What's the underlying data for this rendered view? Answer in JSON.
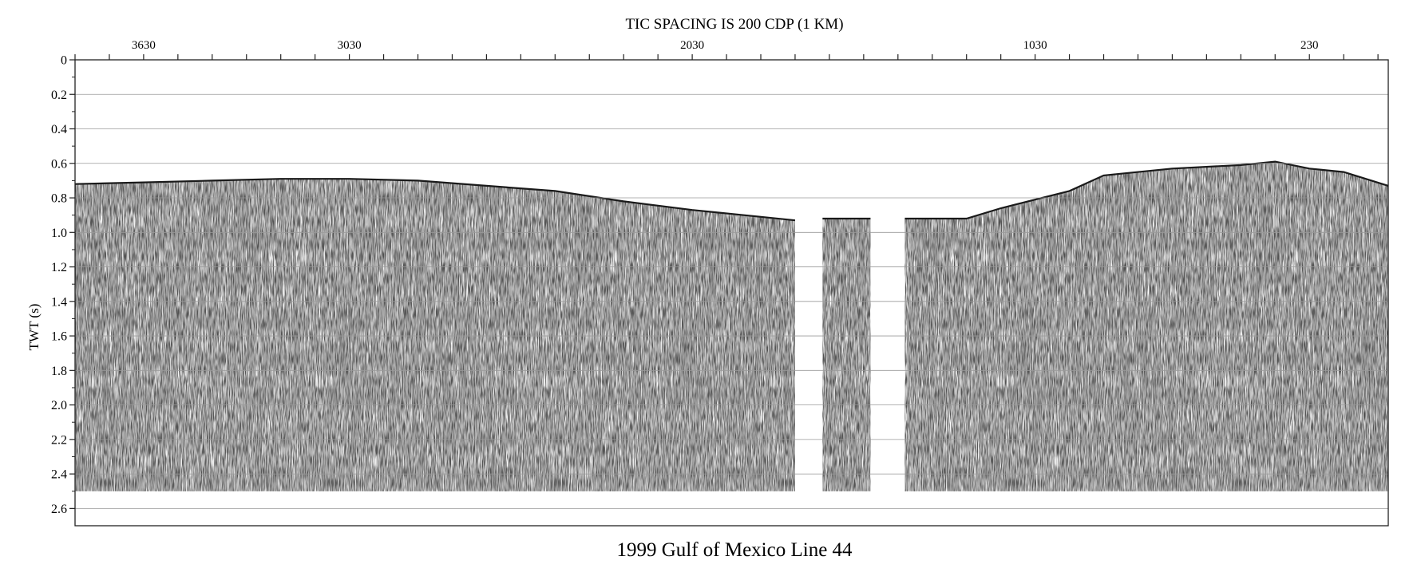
{
  "chart_data": {
    "type": "heatmap",
    "subtype": "seismic-reflection-section",
    "top_title": "TIC SPACING IS 200 CDP (1 KM)",
    "title": "1999 Gulf of Mexico Line 44",
    "ylabel": "TWT (s)",
    "xlabel": "",
    "y_axis": {
      "inverted": true,
      "ylim": [
        0,
        2.7
      ],
      "ticks": [
        0,
        0.2,
        0.4,
        0.6,
        0.8,
        1.0,
        1.2,
        1.4,
        1.6,
        1.8,
        2.0,
        2.2,
        2.4,
        2.6
      ],
      "tick_labels": [
        "0",
        "0.2",
        "0.4",
        "0.6",
        "0.8",
        "1.0",
        "1.2",
        "1.4",
        "1.6",
        "1.8",
        "2.0",
        "2.2",
        "2.4",
        "2.6"
      ],
      "gridlines": true
    },
    "x_axis": {
      "unit": "CDP",
      "reversed": true,
      "xlim": [
        3830,
        0
      ],
      "tick_spacing_cdp": 200,
      "labeled_ticks": [
        3630,
        3030,
        2030,
        1030,
        230
      ],
      "tick_labels": [
        "3630",
        "3030",
        "2030",
        "1030",
        "230"
      ]
    },
    "data_extent_twt_bottom": 2.5,
    "data_gaps_cdp": [
      [
        1730,
        1650
      ],
      [
        1510,
        1410
      ]
    ],
    "seafloor_twt": [
      {
        "cdp": 3830,
        "twt": 0.72
      },
      {
        "cdp": 3630,
        "twt": 0.71
      },
      {
        "cdp": 3430,
        "twt": 0.7
      },
      {
        "cdp": 3230,
        "twt": 0.69
      },
      {
        "cdp": 3030,
        "twt": 0.69
      },
      {
        "cdp": 2830,
        "twt": 0.7
      },
      {
        "cdp": 2630,
        "twt": 0.73
      },
      {
        "cdp": 2430,
        "twt": 0.76
      },
      {
        "cdp": 2230,
        "twt": 0.82
      },
      {
        "cdp": 2030,
        "twt": 0.87
      },
      {
        "cdp": 1830,
        "twt": 0.91
      },
      {
        "cdp": 1730,
        "twt": 0.93
      },
      {
        "cdp": 1650,
        "twt": 0.92
      },
      {
        "cdp": 1510,
        "twt": 0.92
      },
      {
        "cdp": 1410,
        "twt": 0.92
      },
      {
        "cdp": 1230,
        "twt": 0.92
      },
      {
        "cdp": 1130,
        "twt": 0.86
      },
      {
        "cdp": 1030,
        "twt": 0.81
      },
      {
        "cdp": 930,
        "twt": 0.76
      },
      {
        "cdp": 830,
        "twt": 0.67
      },
      {
        "cdp": 630,
        "twt": 0.63
      },
      {
        "cdp": 430,
        "twt": 0.61
      },
      {
        "cdp": 330,
        "twt": 0.59
      },
      {
        "cdp": 230,
        "twt": 0.63
      },
      {
        "cdp": 130,
        "twt": 0.65
      },
      {
        "cdp": 0,
        "twt": 0.73
      }
    ],
    "colors": {
      "background": "#ffffff",
      "amplitude_dark": "#1a1a1a",
      "gridline": "#9a9a9a",
      "axis": "#222222"
    }
  }
}
